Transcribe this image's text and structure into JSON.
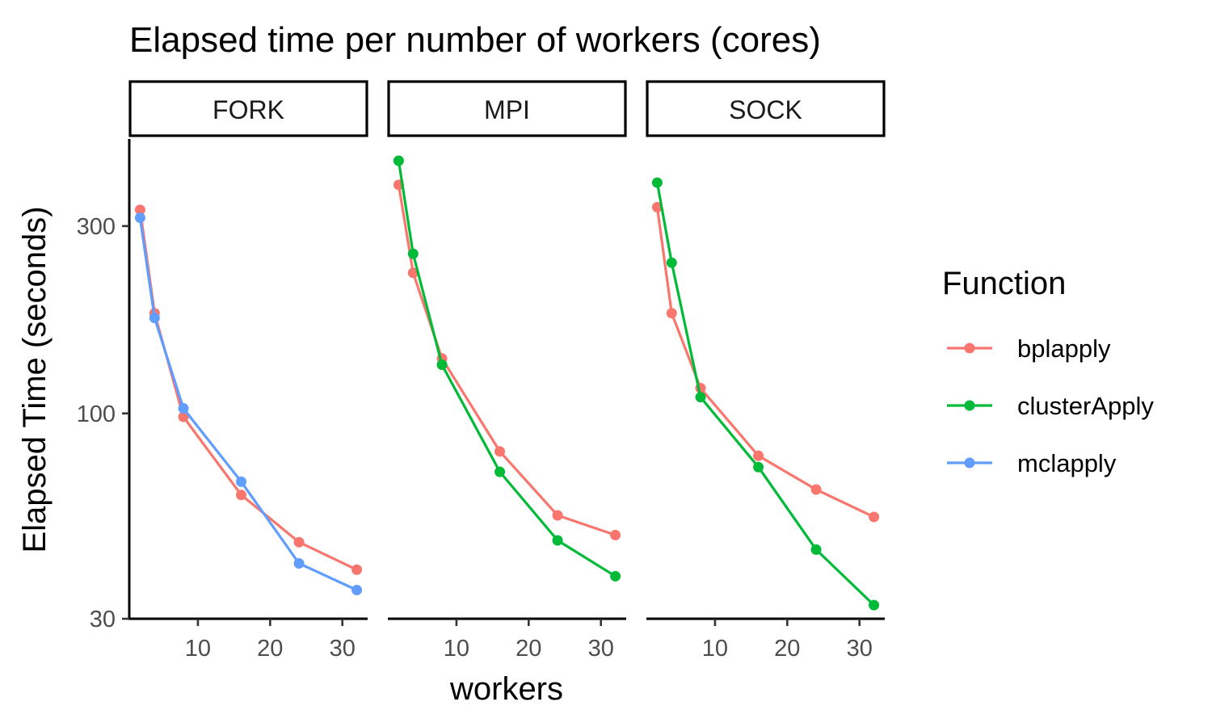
{
  "chart_data": {
    "type": "line",
    "title": "Elapsed time per number of workers (cores)",
    "xlabel": "workers",
    "ylabel": "Elapsed Time (seconds)",
    "y_scale": "log10",
    "ylim": [
      30,
      500
    ],
    "y_ticks": [
      30,
      100,
      300
    ],
    "x_ticks": [
      10,
      20,
      30
    ],
    "xlim": [
      0.5,
      33.5
    ],
    "grid": false,
    "legend": {
      "title": "Function",
      "position": "right"
    },
    "panels": [
      {
        "label": "FORK",
        "series": [
          {
            "name": "bplapply",
            "color": "#F8766D",
            "x": [
              2,
              4,
              8,
              16,
              24,
              32
            ],
            "y": [
              330,
              180,
              98,
              62,
              47,
              40
            ]
          },
          {
            "name": "mclapply",
            "color": "#619CFF",
            "x": [
              2,
              4,
              8,
              16,
              24,
              32
            ],
            "y": [
              315,
              175,
              103,
              67,
              41.5,
              35.5
            ]
          }
        ]
      },
      {
        "label": "MPI",
        "series": [
          {
            "name": "bplapply",
            "color": "#F8766D",
            "x": [
              2,
              4,
              8,
              16,
              24,
              32
            ],
            "y": [
              382,
              228,
              138,
              80,
              55,
              49
            ]
          },
          {
            "name": "clusterApply",
            "color": "#00BA38",
            "x": [
              2,
              4,
              8,
              16,
              24,
              32
            ],
            "y": [
              440,
              255,
              133,
              71,
              47.5,
              38.5
            ]
          }
        ]
      },
      {
        "label": "SOCK",
        "series": [
          {
            "name": "bplapply",
            "color": "#F8766D",
            "x": [
              2,
              4,
              8,
              16,
              24,
              32
            ],
            "y": [
              335,
              180,
              116,
              78,
              64,
              54.5
            ]
          },
          {
            "name": "clusterApply",
            "color": "#00BA38",
            "x": [
              2,
              4,
              8,
              16,
              24,
              32
            ],
            "y": [
              387,
              242,
              110,
              73,
              45,
              32.5
            ]
          }
        ]
      }
    ]
  }
}
